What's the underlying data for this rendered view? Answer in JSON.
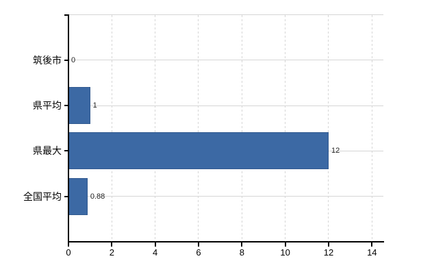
{
  "chart_data": {
    "type": "bar",
    "orientation": "horizontal",
    "categories": [
      "筑後市",
      "県平均",
      "県最大",
      "全国平均"
    ],
    "values": [
      0,
      1,
      12,
      0.88
    ],
    "value_labels": [
      "0",
      "1",
      "12",
      "0.88"
    ],
    "x_ticks": [
      0,
      2,
      4,
      6,
      8,
      10,
      12,
      14
    ],
    "x_tick_labels": [
      "0",
      "2",
      "4",
      "6",
      "8",
      "10",
      "12",
      "14"
    ],
    "xlim": [
      0,
      14.5
    ],
    "grid": "on",
    "legend": "none",
    "colors": {
      "bar": "#3c69a4",
      "bar_edge": "#31598f",
      "axis": "#000000",
      "gridline": "#d6d6d6",
      "category_text": "#000000",
      "value_text": "#222222",
      "background": "#ffffff"
    }
  }
}
